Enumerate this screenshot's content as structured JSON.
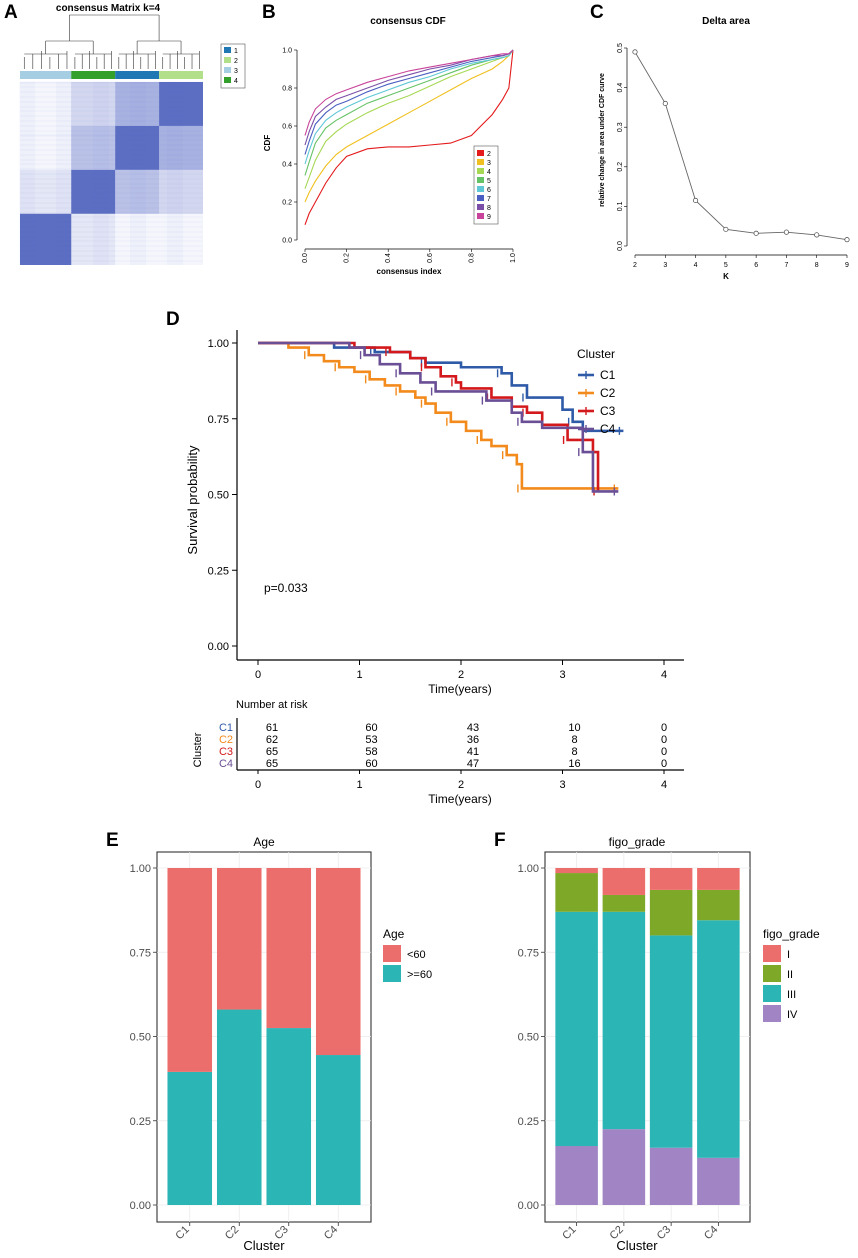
{
  "panel_labels": [
    "A",
    "B",
    "C",
    "D",
    "E",
    "F"
  ],
  "chart_data": [
    {
      "id": "A",
      "type": "heatmap",
      "title": "consensus Matrix k=4",
      "legend": [
        "1",
        "2",
        "3",
        "4"
      ],
      "colors": {
        "1": "#1f78b4",
        "2": "#b2df8a",
        "3": "#a6cee3",
        "4": "#33a02c"
      },
      "cluster_order": [
        "3",
        "4",
        "1",
        "2"
      ]
    },
    {
      "id": "B",
      "type": "line",
      "title": "consensus CDF",
      "xlabel": "consensus index",
      "ylabel": "CDF",
      "xlim": [
        0,
        1
      ],
      "ylim": [
        0,
        1
      ],
      "x_ticks": [
        "0.0",
        "0.2",
        "0.4",
        "0.6",
        "0.8",
        "1.0"
      ],
      "y_ticks": [
        "0.0",
        "0.2",
        "0.4",
        "0.6",
        "0.8",
        "1.0"
      ],
      "x": [
        0,
        0.02,
        0.05,
        0.1,
        0.15,
        0.2,
        0.3,
        0.4,
        0.5,
        0.6,
        0.7,
        0.8,
        0.9,
        0.95,
        0.98,
        1.0
      ],
      "series": [
        {
          "name": "2",
          "color": "#e41a1c",
          "values": [
            0.08,
            0.14,
            0.2,
            0.3,
            0.38,
            0.44,
            0.48,
            0.49,
            0.49,
            0.5,
            0.51,
            0.55,
            0.66,
            0.74,
            0.8,
            1.0
          ]
        },
        {
          "name": "3",
          "color": "#f0c020",
          "values": [
            0.2,
            0.25,
            0.31,
            0.39,
            0.45,
            0.49,
            0.55,
            0.61,
            0.67,
            0.73,
            0.79,
            0.85,
            0.9,
            0.94,
            0.97,
            1.0
          ]
        },
        {
          "name": "4",
          "color": "#a6d854",
          "values": [
            0.27,
            0.33,
            0.42,
            0.52,
            0.57,
            0.61,
            0.67,
            0.72,
            0.76,
            0.81,
            0.86,
            0.9,
            0.94,
            0.96,
            0.97,
            1.0
          ]
        },
        {
          "name": "5",
          "color": "#66c266",
          "values": [
            0.34,
            0.41,
            0.51,
            0.59,
            0.63,
            0.66,
            0.72,
            0.76,
            0.8,
            0.84,
            0.88,
            0.92,
            0.95,
            0.96,
            0.97,
            1.0
          ]
        },
        {
          "name": "6",
          "color": "#5fc7d6",
          "values": [
            0.4,
            0.47,
            0.56,
            0.63,
            0.67,
            0.7,
            0.75,
            0.79,
            0.83,
            0.86,
            0.9,
            0.93,
            0.95,
            0.96,
            0.97,
            1.0
          ]
        },
        {
          "name": "7",
          "color": "#4a5fc1",
          "values": [
            0.45,
            0.52,
            0.61,
            0.67,
            0.71,
            0.73,
            0.78,
            0.82,
            0.85,
            0.88,
            0.91,
            0.94,
            0.96,
            0.97,
            0.98,
            1.0
          ]
        },
        {
          "name": "8",
          "color": "#7b4fa8",
          "values": [
            0.5,
            0.57,
            0.65,
            0.7,
            0.74,
            0.76,
            0.8,
            0.84,
            0.87,
            0.9,
            0.92,
            0.95,
            0.97,
            0.97,
            0.98,
            1.0
          ]
        },
        {
          "name": "9",
          "color": "#c8449a",
          "values": [
            0.55,
            0.62,
            0.69,
            0.74,
            0.77,
            0.79,
            0.83,
            0.86,
            0.89,
            0.91,
            0.93,
            0.95,
            0.97,
            0.98,
            0.98,
            1.0
          ]
        }
      ]
    },
    {
      "id": "C",
      "type": "line",
      "title": "Delta area",
      "xlabel": "K",
      "ylabel": "relative change in area under CDF curve",
      "x": [
        2,
        3,
        4,
        5,
        6,
        7,
        8,
        9
      ],
      "values": [
        0.49,
        0.36,
        0.115,
        0.042,
        0.032,
        0.035,
        0.028,
        0.016
      ],
      "xlim": [
        2,
        9
      ],
      "ylim": [
        0,
        0.5
      ],
      "y_ticks": [
        "0.0",
        "0.1",
        "0.2",
        "0.3",
        "0.4",
        "0.5"
      ]
    },
    {
      "id": "D",
      "type": "line",
      "subtype": "kaplan-meier",
      "xlabel": "Time(years)",
      "ylabel": "Survival probability",
      "xlim": [
        0,
        4
      ],
      "ylim": [
        0,
        1
      ],
      "x_ticks": [
        "0",
        "1",
        "2",
        "3",
        "4"
      ],
      "y_ticks": [
        "0.00",
        "0.25",
        "0.50",
        "0.75",
        "1.00"
      ],
      "pvalue": "p=0.033",
      "legend_title": "Cluster",
      "series": [
        {
          "name": "C1",
          "color": "#2f5aa8",
          "steps": [
            [
              0,
              1.0
            ],
            [
              0.75,
              0.985
            ],
            [
              1.15,
              0.97
            ],
            [
              1.5,
              0.95
            ],
            [
              1.65,
              0.935
            ],
            [
              2.0,
              0.92
            ],
            [
              2.4,
              0.9
            ],
            [
              2.5,
              0.86
            ],
            [
              2.65,
              0.82
            ],
            [
              3.0,
              0.78
            ],
            [
              3.1,
              0.74
            ],
            [
              3.2,
              0.71
            ],
            [
              3.6,
              0.71
            ]
          ]
        },
        {
          "name": "C2",
          "color": "#f28a1c",
          "steps": [
            [
              0,
              1.0
            ],
            [
              0.3,
              0.985
            ],
            [
              0.5,
              0.96
            ],
            [
              0.65,
              0.94
            ],
            [
              0.8,
              0.92
            ],
            [
              0.95,
              0.905
            ],
            [
              1.1,
              0.88
            ],
            [
              1.25,
              0.86
            ],
            [
              1.4,
              0.84
            ],
            [
              1.55,
              0.82
            ],
            [
              1.65,
              0.8
            ],
            [
              1.75,
              0.77
            ],
            [
              1.9,
              0.74
            ],
            [
              2.05,
              0.71
            ],
            [
              2.2,
              0.68
            ],
            [
              2.3,
              0.66
            ],
            [
              2.45,
              0.63
            ],
            [
              2.55,
              0.6
            ],
            [
              2.6,
              0.52
            ],
            [
              3.0,
              0.52
            ],
            [
              3.55,
              0.52
            ]
          ]
        },
        {
          "name": "C3",
          "color": "#d4191c",
          "steps": [
            [
              0,
              1.0
            ],
            [
              0.95,
              0.985
            ],
            [
              1.3,
              0.97
            ],
            [
              1.5,
              0.95
            ],
            [
              1.65,
              0.92
            ],
            [
              1.8,
              0.89
            ],
            [
              1.95,
              0.87
            ],
            [
              2.0,
              0.85
            ],
            [
              2.3,
              0.82
            ],
            [
              2.5,
              0.79
            ],
            [
              2.65,
              0.77
            ],
            [
              2.8,
              0.73
            ],
            [
              3.05,
              0.68
            ],
            [
              3.3,
              0.64
            ],
            [
              3.35,
              0.51
            ]
          ]
        },
        {
          "name": "C4",
          "color": "#6a4f96",
          "steps": [
            [
              0,
              1.0
            ],
            [
              0.9,
              0.985
            ],
            [
              1.05,
              0.96
            ],
            [
              1.2,
              0.93
            ],
            [
              1.4,
              0.9
            ],
            [
              1.6,
              0.87
            ],
            [
              1.75,
              0.84
            ],
            [
              2.0,
              0.84
            ],
            [
              2.25,
              0.81
            ],
            [
              2.5,
              0.77
            ],
            [
              2.6,
              0.74
            ],
            [
              2.8,
              0.72
            ],
            [
              3.2,
              0.64
            ],
            [
              3.3,
              0.51
            ],
            [
              3.55,
              0.51
            ]
          ]
        }
      ],
      "risk_table": {
        "title": "Number at risk",
        "ylabel": "Cluster",
        "xlabel": "Time(years)",
        "times": [
          "0",
          "1",
          "2",
          "3",
          "4"
        ],
        "rows": [
          {
            "name": "C1",
            "values": [
              "61",
              "60",
              "43",
              "10",
              "0"
            ]
          },
          {
            "name": "C2",
            "values": [
              "62",
              "53",
              "36",
              "8",
              "0"
            ]
          },
          {
            "name": "C3",
            "values": [
              "65",
              "58",
              "41",
              "8",
              "0"
            ]
          },
          {
            "name": "C4",
            "values": [
              "65",
              "60",
              "47",
              "16",
              "0"
            ]
          }
        ]
      }
    },
    {
      "id": "E",
      "type": "bar",
      "subtype": "stacked-proportion",
      "title": "Age",
      "xlabel": "Cluster",
      "categories": [
        "C1",
        "C2",
        "C3",
        "C4"
      ],
      "ylim": [
        0,
        1
      ],
      "y_ticks": [
        "0.00",
        "0.25",
        "0.50",
        "0.75",
        "1.00"
      ],
      "legend_title": "Age",
      "series": [
        {
          "name": ">=60",
          "color": "#2bb5b5",
          "values": [
            0.395,
            0.58,
            0.525,
            0.445
          ]
        },
        {
          "name": "<60",
          "color": "#ec6e6c",
          "values": [
            0.605,
            0.42,
            0.475,
            0.555
          ]
        }
      ]
    },
    {
      "id": "F",
      "type": "bar",
      "subtype": "stacked-proportion",
      "title": "figo_grade",
      "xlabel": "Cluster",
      "categories": [
        "C1",
        "C2",
        "C3",
        "C4"
      ],
      "ylim": [
        0,
        1
      ],
      "y_ticks": [
        "0.00",
        "0.25",
        "0.50",
        "0.75",
        "1.00"
      ],
      "legend_title": "figo_grade",
      "series": [
        {
          "name": "IV",
          "color": "#a084c4",
          "values": [
            0.175,
            0.225,
            0.17,
            0.14
          ]
        },
        {
          "name": "III",
          "color": "#2bb5b5",
          "values": [
            0.695,
            0.645,
            0.63,
            0.705
          ]
        },
        {
          "name": "II",
          "color": "#7ea828",
          "values": [
            0.115,
            0.05,
            0.135,
            0.09
          ]
        },
        {
          "name": "I",
          "color": "#ec6e6c",
          "values": [
            0.015,
            0.08,
            0.065,
            0.065
          ]
        }
      ]
    }
  ]
}
